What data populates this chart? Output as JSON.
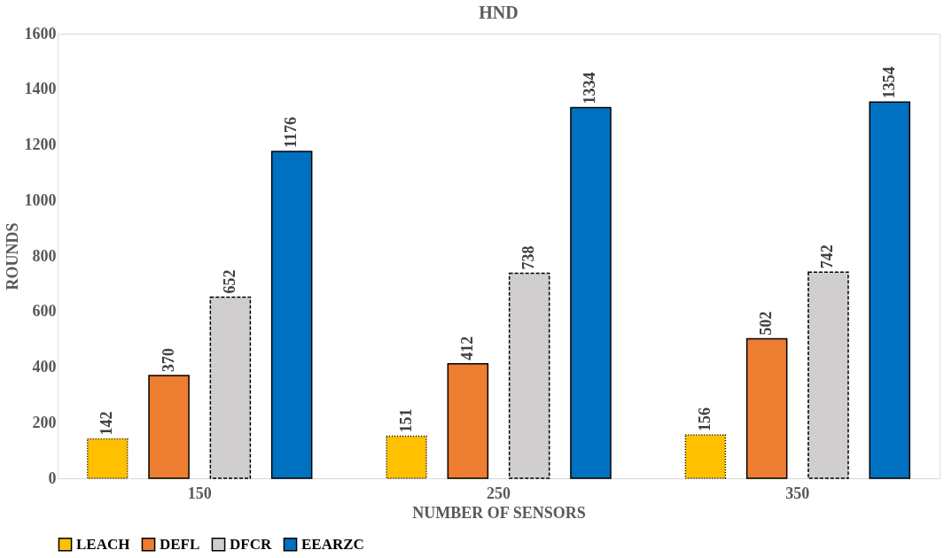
{
  "chart_data": {
    "type": "bar",
    "title": "HND",
    "xlabel": "NUMBER OF SENSORS",
    "ylabel": "ROUNDS",
    "categories": [
      "150",
      "250",
      "350"
    ],
    "series": [
      {
        "name": "LEACH",
        "color": "#ffc000",
        "values": [
          142,
          151,
          156
        ],
        "line_style": "dotted"
      },
      {
        "name": "DEFL",
        "color": "#ed7d31",
        "values": [
          370,
          412,
          502
        ],
        "line_style": "solid"
      },
      {
        "name": "DFCR",
        "color": "#d0cece",
        "values": [
          652,
          738,
          742
        ],
        "line_style": "dashed"
      },
      {
        "name": "EEARZC",
        "color": "#0070c0",
        "values": [
          1176,
          1334,
          1354
        ],
        "line_style": "solid"
      }
    ],
    "ylim": [
      0,
      1600
    ],
    "yticks": [
      0,
      200,
      400,
      600,
      800,
      1000,
      1200,
      1400,
      1600
    ],
    "grid": false,
    "legend": "bottom",
    "data_labels": true
  }
}
